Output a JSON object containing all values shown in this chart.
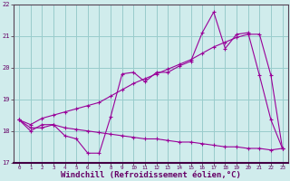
{
  "line1_x": [
    0,
    1,
    2,
    3,
    4,
    5,
    6,
    7,
    8,
    9,
    10,
    11,
    12,
    13,
    14,
    15,
    16,
    17,
    18,
    19,
    20,
    21,
    22,
    23
  ],
  "line1_y": [
    18.35,
    18.0,
    18.2,
    18.2,
    17.85,
    17.75,
    17.3,
    17.3,
    18.45,
    19.8,
    19.85,
    19.55,
    19.85,
    19.85,
    20.05,
    20.2,
    21.1,
    21.75,
    20.6,
    21.05,
    21.1,
    19.75,
    18.35,
    17.45
  ],
  "line2_x": [
    0,
    1,
    2,
    3,
    4,
    5,
    6,
    7,
    8,
    9,
    10,
    11,
    12,
    13,
    14,
    15,
    16,
    17,
    18,
    19,
    20,
    21,
    22,
    23
  ],
  "line2_y": [
    18.35,
    18.2,
    18.4,
    18.5,
    18.6,
    18.7,
    18.8,
    18.9,
    19.1,
    19.3,
    19.5,
    19.65,
    19.8,
    19.95,
    20.1,
    20.25,
    20.45,
    20.65,
    20.8,
    20.95,
    21.05,
    21.05,
    19.75,
    17.45
  ],
  "line3_x": [
    0,
    1,
    2,
    3,
    4,
    5,
    6,
    7,
    8,
    9,
    10,
    11,
    12,
    13,
    14,
    15,
    16,
    17,
    18,
    19,
    20,
    21,
    22,
    23
  ],
  "line3_y": [
    18.35,
    18.1,
    18.1,
    18.2,
    18.1,
    18.05,
    18.0,
    17.95,
    17.9,
    17.85,
    17.8,
    17.75,
    17.75,
    17.7,
    17.65,
    17.65,
    17.6,
    17.55,
    17.5,
    17.5,
    17.45,
    17.45,
    17.4,
    17.45
  ],
  "line_color": "#990099",
  "bg_color": "#d0ecec",
  "grid_color": "#99cccc",
  "axis_color": "#660066",
  "xlabel": "Windchill (Refroidissement éolien,°C)",
  "xlabel_fontsize": 6.5,
  "xlim": [
    -0.5,
    23.5
  ],
  "ylim": [
    17,
    22
  ],
  "yticks": [
    17,
    18,
    19,
    20,
    21,
    22
  ],
  "xticks": [
    0,
    1,
    2,
    3,
    4,
    5,
    6,
    7,
    8,
    9,
    10,
    11,
    12,
    13,
    14,
    15,
    16,
    17,
    18,
    19,
    20,
    21,
    22,
    23
  ]
}
